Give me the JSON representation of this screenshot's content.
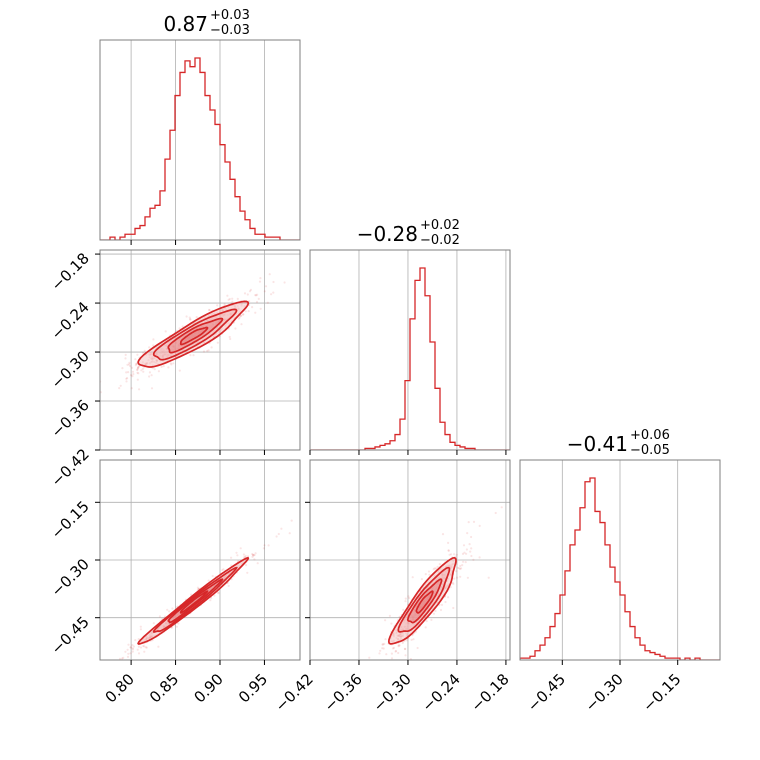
{
  "colors": {
    "series": "#d62728",
    "fill_light": "#f2b5b6",
    "fill_mid": "#e57f80",
    "grid": "#b0b0b0",
    "frame": "#7f7f7f"
  },
  "chart_data": {
    "type": "corner",
    "titles": [
      {
        "median": "0.87",
        "plus": "+0.03",
        "minus": "−0.03"
      },
      {
        "median": "−0.28",
        "plus": "+0.02",
        "minus": "−0.02"
      },
      {
        "median": "−0.41",
        "plus": "+0.06",
        "minus": "−0.05"
      }
    ],
    "params": [
      {
        "range": [
          0.765,
          0.99
        ],
        "ticks": [
          0.8,
          0.85,
          0.9,
          0.95
        ],
        "tick_labels": [
          "0.80",
          "0.85",
          "0.90",
          "0.95"
        ]
      },
      {
        "range": [
          -0.42,
          -0.175
        ],
        "ticks": [
          -0.42,
          -0.36,
          -0.3,
          -0.24,
          -0.18
        ],
        "tick_labels": [
          "−0.42",
          "−0.36",
          "−0.30",
          "−0.24",
          "−0.18"
        ]
      },
      {
        "range": [
          -0.56,
          -0.04
        ],
        "ticks": [
          -0.45,
          -0.3,
          -0.15
        ],
        "tick_labels": [
          "−0.45",
          "−0.30",
          "−0.15"
        ]
      }
    ],
    "y_axis_params": [
      {
        "row": 1,
        "range": [
          -0.42,
          -0.175
        ],
        "ticks": [
          -0.18,
          -0.24,
          -0.3,
          -0.36,
          -0.42
        ],
        "tick_labels": [
          "−0.18",
          "−0.24",
          "−0.30",
          "−0.36",
          "−0.42"
        ]
      },
      {
        "row": 2,
        "range": [
          -0.56,
          -0.04
        ],
        "ticks": [
          -0.15,
          -0.3,
          -0.45
        ],
        "tick_labels": [
          "−0.15",
          "−0.30",
          "−0.45"
        ]
      }
    ],
    "histograms": [
      {
        "param": 0,
        "bin_edges_range": [
          0.765,
          0.99
        ],
        "counts": [
          0,
          0,
          1,
          0,
          1,
          2,
          2,
          4,
          5,
          8,
          11,
          12,
          17,
          28,
          38,
          50,
          58,
          62,
          60,
          63,
          58,
          50,
          45,
          40,
          33,
          27,
          21,
          15,
          10,
          7,
          4,
          2,
          2,
          1,
          1,
          1,
          0,
          0,
          0,
          0
        ]
      },
      {
        "param": 1,
        "bin_edges_range": [
          -0.42,
          -0.175
        ],
        "counts": [
          0,
          0,
          0,
          0,
          0,
          0,
          0,
          0,
          0,
          0,
          0,
          1,
          1,
          2,
          3,
          4,
          6,
          10,
          20,
          45,
          85,
          110,
          118,
          100,
          70,
          40,
          18,
          10,
          5,
          3,
          2,
          1,
          1,
          0,
          0,
          0,
          0,
          0,
          0,
          0
        ]
      },
      {
        "param": 2,
        "bin_edges_range": [
          -0.56,
          -0.04
        ],
        "counts": [
          1,
          1,
          2,
          5,
          8,
          12,
          18,
          25,
          35,
          48,
          62,
          70,
          82,
          96,
          98,
          80,
          74,
          62,
          50,
          42,
          35,
          26,
          18,
          12,
          8,
          5,
          4,
          3,
          2,
          1,
          1,
          1,
          0,
          1,
          0,
          1,
          0,
          0,
          0,
          0
        ]
      }
    ],
    "joint": [
      {
        "x_param": 0,
        "y_param": 1,
        "mean": [
          0.87,
          -0.28
        ],
        "std": [
          0.03,
          0.02
        ],
        "correlation": 0.9
      },
      {
        "x_param": 0,
        "y_param": 2,
        "mean": [
          0.87,
          -0.41
        ],
        "std": [
          0.03,
          0.055
        ],
        "correlation": 0.985
      },
      {
        "x_param": 1,
        "y_param": 2,
        "mean": [
          -0.28,
          -0.41
        ],
        "std": [
          0.02,
          0.055
        ],
        "correlation": 0.9
      }
    ],
    "contour_levels_sigma": [
      0.5,
      1.0,
      1.5,
      2.0
    ],
    "grid": true
  }
}
